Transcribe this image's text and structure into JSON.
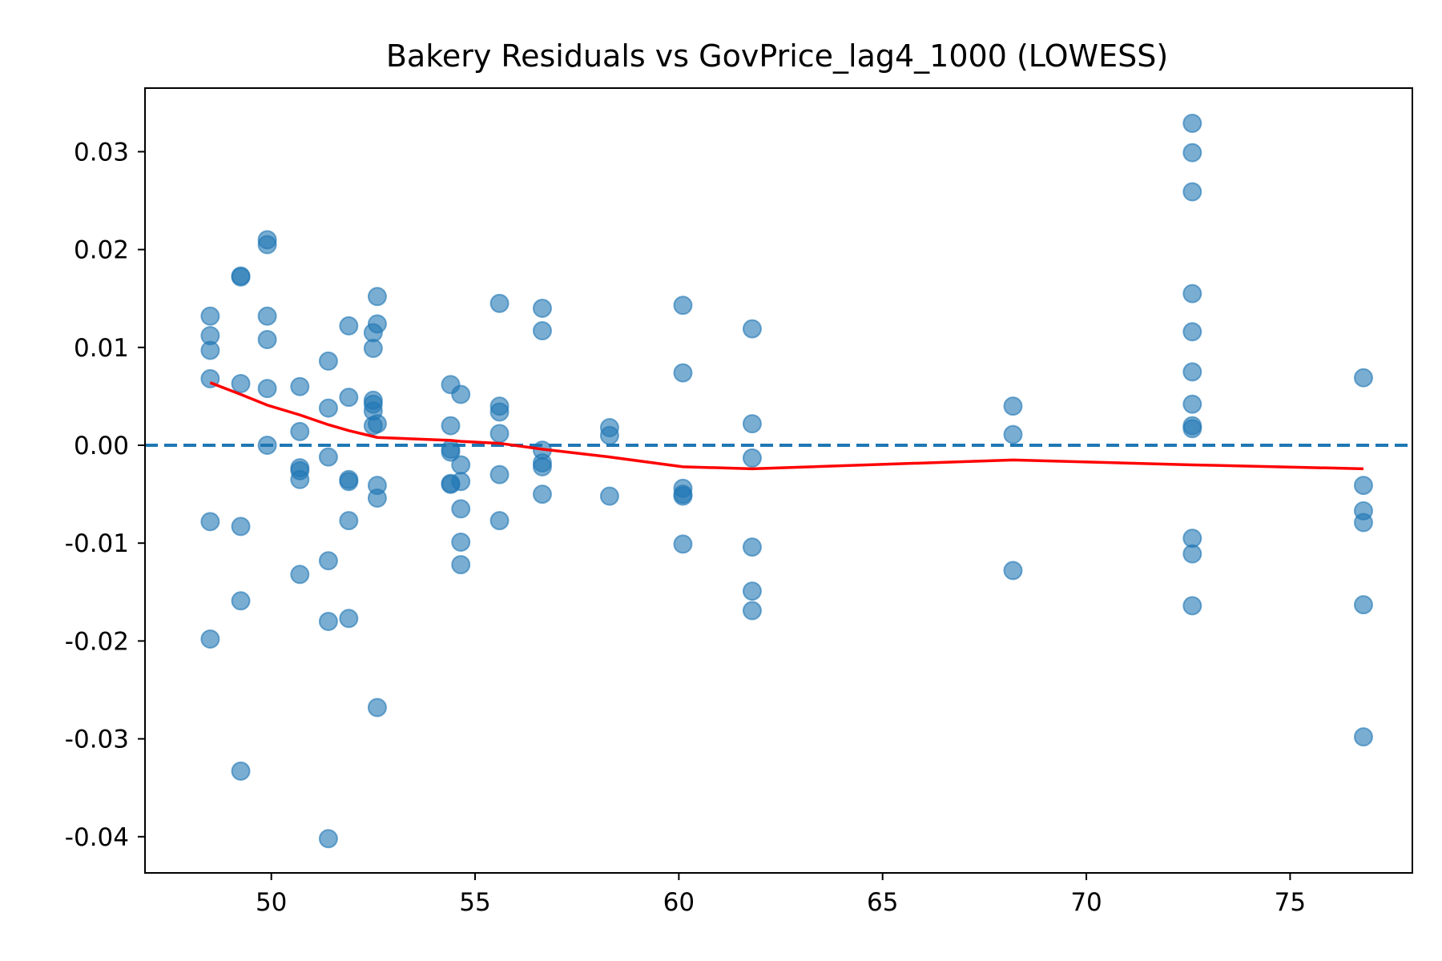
{
  "chart_data": {
    "type": "scatter",
    "title": "Bakery Residuals vs GovPrice_lag4_1000 (LOWESS)",
    "xlabel": "",
    "ylabel": "",
    "xlim": [
      46.9,
      78.0
    ],
    "ylim": [
      -0.0437,
      0.0365
    ],
    "x_ticks": [
      50,
      55,
      60,
      65,
      70,
      75
    ],
    "y_ticks": [
      -0.04,
      -0.03,
      -0.02,
      -0.01,
      0.0,
      0.01,
      0.02,
      0.03
    ],
    "x_tick_labels": [
      "50",
      "55",
      "60",
      "65",
      "70",
      "75"
    ],
    "y_tick_labels": [
      "-0.04",
      "-0.03",
      "-0.02",
      "-0.01",
      "0.00",
      "0.01",
      "0.02",
      "0.03"
    ],
    "grid": false,
    "reference_line": {
      "y": 0.0,
      "style": "dashed",
      "color": "#1f77b4"
    },
    "series": [
      {
        "kind": "points",
        "color": "#1f77b4",
        "points": [
          [
            48.5,
            0.0132
          ],
          [
            48.5,
            0.0112
          ],
          [
            48.5,
            0.0097
          ],
          [
            48.5,
            0.0068
          ],
          [
            48.5,
            -0.0078
          ],
          [
            48.5,
            -0.0198
          ],
          [
            49.25,
            0.0173
          ],
          [
            49.25,
            0.0172
          ],
          [
            49.25,
            0.0063
          ],
          [
            49.25,
            -0.0083
          ],
          [
            49.25,
            -0.0159
          ],
          [
            49.25,
            -0.0333
          ],
          [
            49.9,
            0.021
          ],
          [
            49.9,
            0.0205
          ],
          [
            49.9,
            0.0132
          ],
          [
            49.9,
            0.0108
          ],
          [
            49.9,
            0.0058
          ],
          [
            49.9,
            0.0
          ],
          [
            50.7,
            0.006
          ],
          [
            50.7,
            0.0014
          ],
          [
            50.7,
            -0.0023
          ],
          [
            50.7,
            -0.0026
          ],
          [
            50.7,
            -0.0035
          ],
          [
            50.7,
            -0.0132
          ],
          [
            51.4,
            0.0086
          ],
          [
            51.4,
            0.0038
          ],
          [
            51.4,
            -0.0012
          ],
          [
            51.4,
            -0.0118
          ],
          [
            51.4,
            -0.018
          ],
          [
            51.4,
            -0.0402
          ],
          [
            51.9,
            0.0122
          ],
          [
            51.9,
            0.0049
          ],
          [
            51.9,
            -0.0035
          ],
          [
            51.9,
            -0.0037
          ],
          [
            51.9,
            -0.0077
          ],
          [
            51.9,
            -0.0177
          ],
          [
            52.5,
            0.0115
          ],
          [
            52.5,
            0.0099
          ],
          [
            52.5,
            0.0046
          ],
          [
            52.5,
            0.0042
          ],
          [
            52.5,
            0.0035
          ],
          [
            52.5,
            0.002
          ],
          [
            52.6,
            0.0152
          ],
          [
            52.6,
            0.0124
          ],
          [
            52.6,
            0.0022
          ],
          [
            52.6,
            -0.0041
          ],
          [
            52.6,
            -0.0054
          ],
          [
            52.6,
            -0.0268
          ],
          [
            54.4,
            0.0062
          ],
          [
            54.4,
            0.002
          ],
          [
            54.4,
            -0.0004
          ],
          [
            54.4,
            -0.0007
          ],
          [
            54.4,
            -0.0039
          ],
          [
            54.4,
            -0.004
          ],
          [
            54.65,
            0.0052
          ],
          [
            54.65,
            -0.002
          ],
          [
            54.65,
            -0.0037
          ],
          [
            54.65,
            -0.0065
          ],
          [
            54.65,
            -0.0099
          ],
          [
            54.65,
            -0.0122
          ],
          [
            55.6,
            0.0145
          ],
          [
            55.6,
            0.004
          ],
          [
            55.6,
            0.0034
          ],
          [
            55.6,
            0.0012
          ],
          [
            55.6,
            -0.003
          ],
          [
            55.6,
            -0.0077
          ],
          [
            56.65,
            0.014
          ],
          [
            56.65,
            0.0117
          ],
          [
            56.65,
            -0.0005
          ],
          [
            56.65,
            -0.0018
          ],
          [
            56.65,
            -0.0022
          ],
          [
            56.65,
            -0.005
          ],
          [
            58.3,
            0.0018
          ],
          [
            58.3,
            0.001
          ],
          [
            58.3,
            -0.0052
          ],
          [
            60.1,
            0.0143
          ],
          [
            60.1,
            0.0074
          ],
          [
            60.1,
            -0.0044
          ],
          [
            60.1,
            -0.005
          ],
          [
            60.1,
            -0.0052
          ],
          [
            60.1,
            -0.0101
          ],
          [
            61.8,
            0.0119
          ],
          [
            61.8,
            0.0022
          ],
          [
            61.8,
            -0.0013
          ],
          [
            61.8,
            -0.0104
          ],
          [
            61.8,
            -0.0149
          ],
          [
            61.8,
            -0.0169
          ],
          [
            68.2,
            0.004
          ],
          [
            68.2,
            0.0011
          ],
          [
            68.2,
            -0.0128
          ],
          [
            72.6,
            0.0329
          ],
          [
            72.6,
            0.0299
          ],
          [
            72.6,
            0.0259
          ],
          [
            72.6,
            0.0155
          ],
          [
            72.6,
            0.0116
          ],
          [
            72.6,
            0.0075
          ],
          [
            72.6,
            0.0042
          ],
          [
            72.6,
            0.002
          ],
          [
            72.6,
            0.0017
          ],
          [
            72.6,
            -0.0095
          ],
          [
            72.6,
            -0.0111
          ],
          [
            72.6,
            -0.0164
          ],
          [
            76.8,
            0.0069
          ],
          [
            76.8,
            -0.0041
          ],
          [
            76.8,
            -0.0067
          ],
          [
            76.8,
            -0.0079
          ],
          [
            76.8,
            -0.0163
          ],
          [
            76.8,
            -0.0298
          ]
        ]
      },
      {
        "kind": "lowess-line",
        "color": "#ff0000",
        "points": [
          [
            48.5,
            0.0064
          ],
          [
            49.25,
            0.0052
          ],
          [
            49.9,
            0.0041
          ],
          [
            50.7,
            0.0031
          ],
          [
            51.4,
            0.0021
          ],
          [
            51.9,
            0.0015
          ],
          [
            52.5,
            0.0009
          ],
          [
            52.6,
            0.0008
          ],
          [
            54.4,
            0.0005
          ],
          [
            54.65,
            0.0004
          ],
          [
            55.6,
            0.0002
          ],
          [
            56.65,
            -0.0004
          ],
          [
            58.3,
            -0.0012
          ],
          [
            60.1,
            -0.0022
          ],
          [
            61.8,
            -0.0024
          ],
          [
            68.2,
            -0.0015
          ],
          [
            72.6,
            -0.002
          ],
          [
            76.8,
            -0.0024
          ]
        ]
      }
    ]
  }
}
